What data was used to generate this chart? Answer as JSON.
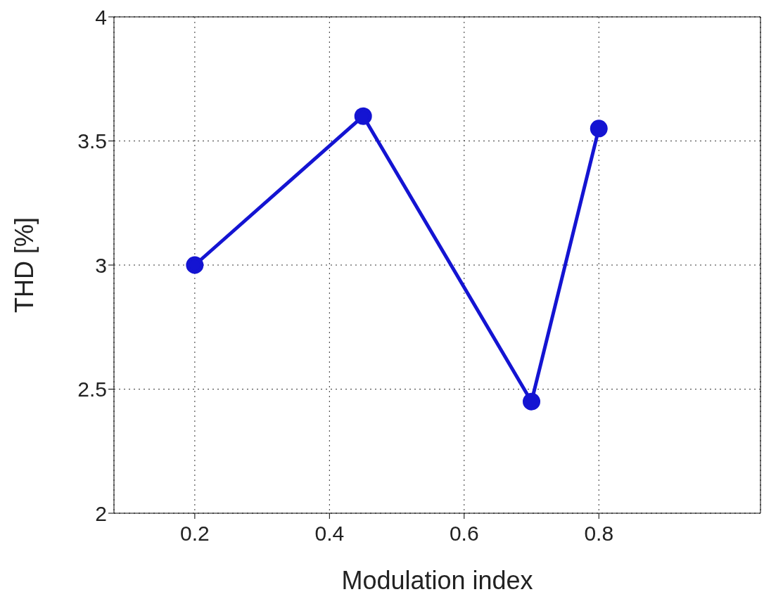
{
  "chart_data": {
    "type": "line",
    "xlabel": "Modulation index",
    "ylabel": "THD [%]",
    "x": [
      0.2,
      0.45,
      0.7,
      0.8
    ],
    "series": [
      {
        "color": "#1414d2",
        "values": [
          3.0,
          3.6,
          2.45,
          3.55
        ]
      }
    ],
    "xlim": [
      0.08,
      1.04
    ],
    "xticks": [
      0.2,
      0.4,
      0.6,
      0.8
    ],
    "ylim": [
      2,
      4
    ],
    "yticks": [
      2,
      2.5,
      3,
      3.5,
      4
    ],
    "grid": true,
    "marker": "circle",
    "line_style": "solid"
  }
}
